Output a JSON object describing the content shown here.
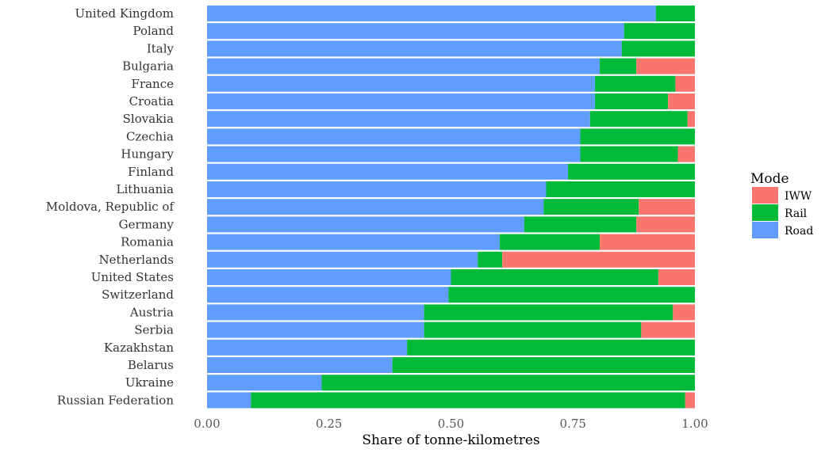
{
  "chart_data": {
    "type": "bar",
    "orientation": "horizontal",
    "stacked": true,
    "categories": [
      "United Kingdom",
      "Poland",
      "Italy",
      "Bulgaria",
      "France",
      "Croatia",
      "Slovakia",
      "Czechia",
      "Hungary",
      "Finland",
      "Lithuania",
      "Moldova, Republic of",
      "Germany",
      "Romania",
      "Netherlands",
      "United States",
      "Switzerland",
      "Austria",
      "Serbia",
      "Kazakhstan",
      "Belarus",
      "Ukraine",
      "Russian Federation"
    ],
    "series": [
      {
        "name": "Road",
        "color": "#619CFF",
        "values": [
          0.92,
          0.855,
          0.85,
          0.805,
          0.795,
          0.795,
          0.785,
          0.765,
          0.765,
          0.74,
          0.695,
          0.69,
          0.65,
          0.6,
          0.555,
          0.5,
          0.495,
          0.445,
          0.445,
          0.41,
          0.38,
          0.235,
          0.09
        ]
      },
      {
        "name": "Rail",
        "color": "#00BA38",
        "values": [
          0.08,
          0.145,
          0.15,
          0.075,
          0.165,
          0.15,
          0.2,
          0.235,
          0.2,
          0.26,
          0.305,
          0.195,
          0.23,
          0.205,
          0.05,
          0.425,
          0.505,
          0.51,
          0.445,
          0.59,
          0.62,
          0.765,
          0.89
        ]
      },
      {
        "name": "IWW",
        "color": "#F8766D",
        "values": [
          0.0,
          0.0,
          0.0,
          0.12,
          0.04,
          0.055,
          0.015,
          0.0,
          0.035,
          0.0,
          0.0,
          0.115,
          0.12,
          0.195,
          0.395,
          0.075,
          0.0,
          0.045,
          0.11,
          0.0,
          0.0,
          0.0,
          0.02
        ]
      }
    ],
    "stack_order": [
      "Road",
      "Rail",
      "IWW"
    ],
    "xlabel": "Share of tonne-kilometres",
    "ylabel": "",
    "xlim": [
      0,
      1
    ],
    "xticks": [
      "0.00",
      "0.25",
      "0.50",
      "0.75",
      "1.00"
    ],
    "grid": false,
    "legend": {
      "title": "Mode",
      "position": "right",
      "entries": [
        "IWW",
        "Rail",
        "Road"
      ]
    }
  }
}
